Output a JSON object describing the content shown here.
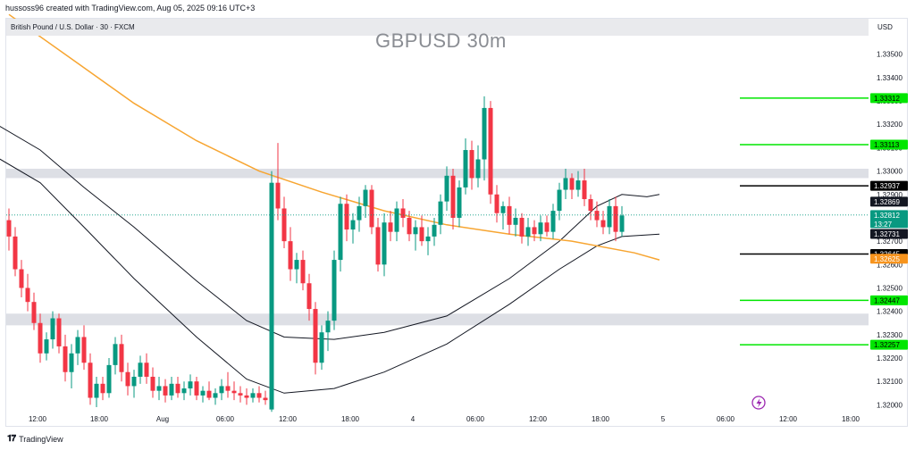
{
  "header": {
    "attribution": "hussoss96 created with TradingView.com, Aug 05, 2025 09:16 UTC+3"
  },
  "legend": {
    "symbol": "British Pound / U.S. Dollar · 30 · FXCM",
    "currency": "USD"
  },
  "footer": {
    "logo_text": "TradingView"
  },
  "chart_data": {
    "type": "candlestick",
    "title": "GBPUSD 30m",
    "ylim": [
      1.3195,
      1.3362
    ],
    "y_ticks": [
      "1.33500",
      "1.33400",
      "1.33300",
      "1.33200",
      "1.33100",
      "1.33000",
      "1.32900",
      "1.32800",
      "1.32700",
      "1.32600",
      "1.32500",
      "1.32400",
      "1.32300",
      "1.32200",
      "1.32100",
      "1.32000"
    ],
    "x_ticks": [
      "12:00",
      "18:00",
      "Aug",
      "06:00",
      "12:00",
      "18:00",
      "4",
      "06:00",
      "12:00",
      "18:00",
      "5",
      "06:00",
      "12:00",
      "18:00"
    ],
    "last_price": {
      "value": "1.32812",
      "countdown": "13:27"
    },
    "level_lines": [
      {
        "value": "1.33312",
        "color": "#00e600"
      },
      {
        "value": "1.33113",
        "color": "#00e600"
      },
      {
        "value": "1.32937",
        "color": "#000000"
      },
      {
        "value": "1.32645",
        "color": "#000000"
      },
      {
        "value": "1.32447",
        "color": "#00e600"
      },
      {
        "value": "1.32257",
        "color": "#00e600"
      }
    ],
    "axis_tags": [
      {
        "value": "1.32869",
        "bg": "#131722",
        "fg": "#ffffff"
      },
      {
        "value": "1.32731",
        "bg": "#131722",
        "fg": "#ffffff"
      },
      {
        "value": "1.32625",
        "bg": "#f7941d",
        "fg": "#ffffff"
      }
    ],
    "zones": [
      {
        "from": 1.3297,
        "to": 1.3301
      },
      {
        "from": 1.3234,
        "to": 1.3239
      }
    ],
    "colors": {
      "up": "#089981",
      "down": "#f23645",
      "ma": "#f7a531",
      "band": "#131722",
      "green_level": "#00e600"
    },
    "ma_line": [
      [
        0,
        1.3367
      ],
      [
        10,
        1.3348
      ],
      [
        20,
        1.3329
      ],
      [
        30,
        1.3313
      ],
      [
        40,
        1.33
      ],
      [
        50,
        1.3291
      ],
      [
        60,
        1.3283
      ],
      [
        70,
        1.3277
      ],
      [
        80,
        1.3273
      ],
      [
        90,
        1.327
      ],
      [
        100,
        1.3265
      ],
      [
        104,
        1.3262
      ]
    ],
    "upper_band": [
      [
        -2,
        1.332
      ],
      [
        5,
        1.3309
      ],
      [
        12,
        1.3293
      ],
      [
        20,
        1.3276
      ],
      [
        30,
        1.3253
      ],
      [
        38,
        1.3236
      ],
      [
        44,
        1.3229
      ],
      [
        52,
        1.3228
      ],
      [
        60,
        1.3231
      ],
      [
        70,
        1.3238
      ],
      [
        80,
        1.3254
      ],
      [
        88,
        1.327
      ],
      [
        94,
        1.3285
      ],
      [
        98,
        1.329
      ],
      [
        102,
        1.3289
      ],
      [
        104,
        1.329
      ]
    ],
    "lower_band": [
      [
        -2,
        1.3306
      ],
      [
        5,
        1.3295
      ],
      [
        12,
        1.3276
      ],
      [
        20,
        1.3254
      ],
      [
        30,
        1.3229
      ],
      [
        38,
        1.3211
      ],
      [
        44,
        1.3205
      ],
      [
        52,
        1.3207
      ],
      [
        60,
        1.3214
      ],
      [
        70,
        1.3226
      ],
      [
        80,
        1.3243
      ],
      [
        88,
        1.3258
      ],
      [
        94,
        1.3268
      ],
      [
        98,
        1.3272
      ],
      [
        104,
        1.3273
      ]
    ],
    "candles": [
      [
        1.3279,
        1.3284,
        1.3266,
        1.3272
      ],
      [
        1.3272,
        1.3276,
        1.3255,
        1.3258
      ],
      [
        1.3258,
        1.3262,
        1.3246,
        1.325
      ],
      [
        1.325,
        1.3256,
        1.324,
        1.3244
      ],
      [
        1.3244,
        1.3248,
        1.3232,
        1.3235
      ],
      [
        1.3235,
        1.3239,
        1.3218,
        1.3222
      ],
      [
        1.3222,
        1.3231,
        1.3219,
        1.3228
      ],
      [
        1.3228,
        1.324,
        1.3224,
        1.3237
      ],
      [
        1.3237,
        1.3239,
        1.3222,
        1.3225
      ],
      [
        1.3225,
        1.323,
        1.321,
        1.3214
      ],
      [
        1.3214,
        1.3226,
        1.3207,
        1.3222
      ],
      [
        1.3222,
        1.3232,
        1.3217,
        1.3229
      ],
      [
        1.3229,
        1.3234,
        1.3215,
        1.3218
      ],
      [
        1.3218,
        1.3222,
        1.32,
        1.3203
      ],
      [
        1.3203,
        1.3212,
        1.3199,
        1.3209
      ],
      [
        1.3209,
        1.3212,
        1.3202,
        1.3205
      ],
      [
        1.3205,
        1.322,
        1.3203,
        1.3217
      ],
      [
        1.3217,
        1.3229,
        1.3213,
        1.3226
      ],
      [
        1.3226,
        1.323,
        1.321,
        1.3214
      ],
      [
        1.3214,
        1.3218,
        1.3204,
        1.3208
      ],
      [
        1.3208,
        1.3215,
        1.3203,
        1.3212
      ],
      [
        1.3212,
        1.3221,
        1.3209,
        1.3218
      ],
      [
        1.3218,
        1.3222,
        1.3209,
        1.3212
      ],
      [
        1.3212,
        1.3216,
        1.3203,
        1.3206
      ],
      [
        1.3206,
        1.3212,
        1.3202,
        1.3208
      ],
      [
        1.3208,
        1.3211,
        1.3201,
        1.3204
      ],
      [
        1.3204,
        1.3212,
        1.3202,
        1.3209
      ],
      [
        1.3209,
        1.3212,
        1.3203,
        1.3205
      ],
      [
        1.3205,
        1.321,
        1.3202,
        1.3207
      ],
      [
        1.3207,
        1.3213,
        1.3204,
        1.321
      ],
      [
        1.321,
        1.3212,
        1.3202,
        1.3204
      ],
      [
        1.3204,
        1.3208,
        1.3201,
        1.3206
      ],
      [
        1.3206,
        1.321,
        1.3202,
        1.3203
      ],
      [
        1.3203,
        1.3207,
        1.32,
        1.3205
      ],
      [
        1.3205,
        1.3211,
        1.3202,
        1.3208
      ],
      [
        1.3208,
        1.3214,
        1.3203,
        1.3206
      ],
      [
        1.3206,
        1.321,
        1.3202,
        1.3205
      ],
      [
        1.3205,
        1.3208,
        1.3201,
        1.3204
      ],
      [
        1.3204,
        1.3207,
        1.32,
        1.3203
      ],
      [
        1.3203,
        1.3207,
        1.3201,
        1.3205
      ],
      [
        1.3205,
        1.3208,
        1.3201,
        1.3203
      ],
      [
        1.3203,
        1.3206,
        1.32,
        1.3202
      ],
      [
        1.3198,
        1.33,
        1.3197,
        1.3295
      ],
      [
        1.3295,
        1.3312,
        1.3279,
        1.3284
      ],
      [
        1.3284,
        1.3289,
        1.3267,
        1.327
      ],
      [
        1.327,
        1.3276,
        1.3253,
        1.3258
      ],
      [
        1.3258,
        1.3265,
        1.3252,
        1.3262
      ],
      [
        1.3262,
        1.3266,
        1.3249,
        1.3252
      ],
      [
        1.3252,
        1.3256,
        1.3236,
        1.3241
      ],
      [
        1.3241,
        1.3244,
        1.3213,
        1.3218
      ],
      [
        1.3218,
        1.3234,
        1.3215,
        1.3231
      ],
      [
        1.3231,
        1.324,
        1.3223,
        1.3236
      ],
      [
        1.3236,
        1.3266,
        1.3232,
        1.3262
      ],
      [
        1.3262,
        1.3289,
        1.3257,
        1.3286
      ],
      [
        1.3286,
        1.329,
        1.327,
        1.3275
      ],
      [
        1.3275,
        1.3282,
        1.3269,
        1.3279
      ],
      [
        1.3279,
        1.3289,
        1.3274,
        1.3285
      ],
      [
        1.3285,
        1.3294,
        1.328,
        1.3292
      ],
      [
        1.3292,
        1.3294,
        1.3273,
        1.3276
      ],
      [
        1.3276,
        1.328,
        1.3257,
        1.326
      ],
      [
        1.326,
        1.3282,
        1.3255,
        1.3278
      ],
      [
        1.3278,
        1.3283,
        1.327,
        1.3274
      ],
      [
        1.3274,
        1.3287,
        1.327,
        1.3284
      ],
      [
        1.3284,
        1.3288,
        1.3276,
        1.328
      ],
      [
        1.328,
        1.3283,
        1.327,
        1.3273
      ],
      [
        1.3273,
        1.3279,
        1.3266,
        1.3276
      ],
      [
        1.3276,
        1.3281,
        1.3268,
        1.327
      ],
      [
        1.327,
        1.3276,
        1.3264,
        1.3272
      ],
      [
        1.3272,
        1.328,
        1.3268,
        1.3277
      ],
      [
        1.3277,
        1.329,
        1.3273,
        1.3287
      ],
      [
        1.3287,
        1.3302,
        1.3283,
        1.3298
      ],
      [
        1.3298,
        1.3301,
        1.3275,
        1.328
      ],
      [
        1.328,
        1.3296,
        1.3276,
        1.3293
      ],
      [
        1.3293,
        1.3314,
        1.329,
        1.3309
      ],
      [
        1.3309,
        1.3313,
        1.3292,
        1.3297
      ],
      [
        1.3297,
        1.3311,
        1.3293,
        1.3305
      ],
      [
        1.3305,
        1.3332,
        1.3296,
        1.3327
      ],
      [
        1.3327,
        1.333,
        1.3286,
        1.329
      ],
      [
        1.329,
        1.3294,
        1.3278,
        1.3282
      ],
      [
        1.3282,
        1.3287,
        1.3275,
        1.3285
      ],
      [
        1.3285,
        1.3289,
        1.3273,
        1.3277
      ],
      [
        1.3277,
        1.3284,
        1.3272,
        1.328
      ],
      [
        1.328,
        1.3282,
        1.3269,
        1.3272
      ],
      [
        1.3272,
        1.328,
        1.3268,
        1.3276
      ],
      [
        1.3276,
        1.3279,
        1.327,
        1.3273
      ],
      [
        1.3273,
        1.3281,
        1.327,
        1.3278
      ],
      [
        1.3278,
        1.3281,
        1.3272,
        1.3274
      ],
      [
        1.3274,
        1.3286,
        1.3271,
        1.3283
      ],
      [
        1.3283,
        1.3295,
        1.3279,
        1.3292
      ],
      [
        1.3292,
        1.3301,
        1.3288,
        1.3297
      ],
      [
        1.3297,
        1.3299,
        1.3288,
        1.3292
      ],
      [
        1.3292,
        1.33,
        1.3289,
        1.3296
      ],
      [
        1.3296,
        1.3301,
        1.3285,
        1.3288
      ],
      [
        1.3288,
        1.329,
        1.3279,
        1.3283
      ],
      [
        1.3283,
        1.3287,
        1.3276,
        1.3279
      ],
      [
        1.3279,
        1.3283,
        1.3273,
        1.3276
      ],
      [
        1.3276,
        1.3288,
        1.3273,
        1.3285
      ],
      [
        1.3285,
        1.3289,
        1.327,
        1.3274
      ],
      [
        1.3274,
        1.3285,
        1.3272,
        1.3281
      ]
    ]
  }
}
